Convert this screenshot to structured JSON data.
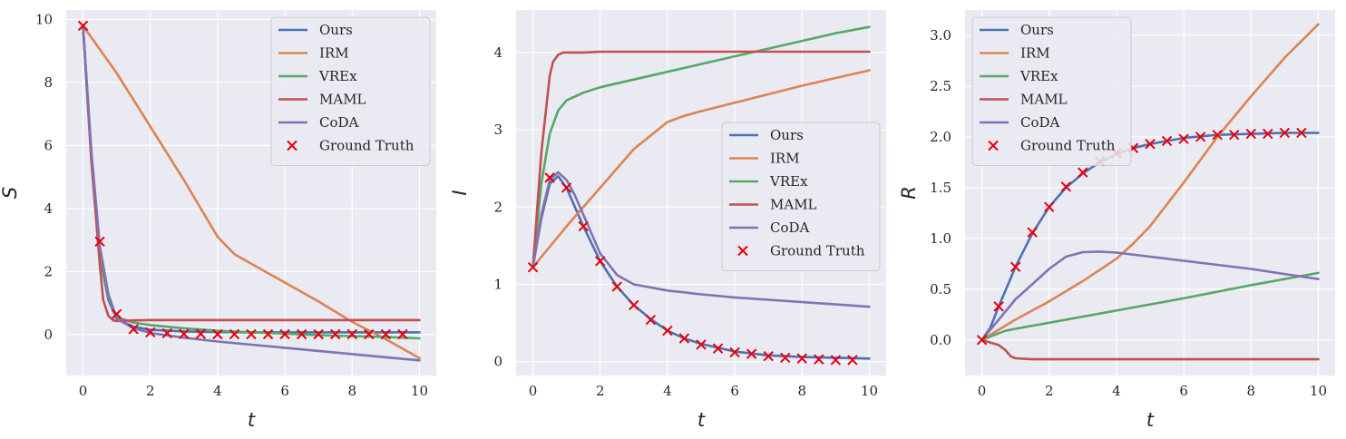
{
  "chart_data": [
    {
      "type": "line",
      "title": "",
      "xlabel": "t",
      "ylabel": "S",
      "xlim": [
        -0.5,
        10.5
      ],
      "ylim": [
        -1.3,
        10.3
      ],
      "xticks": [
        0,
        2,
        4,
        6,
        8,
        10
      ],
      "yticks": [
        0,
        2,
        4,
        6,
        8,
        10
      ],
      "ytick_labels": [
        "0",
        "2",
        "4",
        "6",
        "8",
        "10"
      ],
      "legend_position": "top-right",
      "series": [
        {
          "name": "Ours",
          "color": "#4c72b0",
          "x": [
            0,
            0.25,
            0.5,
            0.75,
            1,
            1.5,
            2,
            3,
            4,
            5,
            6,
            7,
            8,
            9,
            10
          ],
          "y": [
            9.8,
            5.5,
            2.5,
            1.1,
            0.5,
            0.25,
            0.15,
            0.1,
            0.08,
            0.07,
            0.07,
            0.07,
            0.07,
            0.07,
            0.07
          ]
        },
        {
          "name": "IRM",
          "color": "#dd8452",
          "x": [
            0,
            1,
            2,
            3,
            4,
            4.5,
            5,
            6,
            7,
            8,
            9,
            10
          ],
          "y": [
            9.8,
            8.3,
            6.6,
            4.9,
            3.1,
            2.55,
            2.25,
            1.65,
            1.05,
            0.4,
            -0.15,
            -0.75
          ]
        },
        {
          "name": "VREx",
          "color": "#55a868",
          "x": [
            0,
            0.25,
            0.5,
            0.75,
            1,
            1.5,
            2,
            3,
            4,
            5,
            6,
            7,
            8,
            9,
            10
          ],
          "y": [
            9.8,
            5.7,
            2.6,
            1.2,
            0.55,
            0.38,
            0.3,
            0.2,
            0.12,
            0.07,
            0.03,
            -0.02,
            -0.05,
            -0.08,
            -0.12
          ]
        },
        {
          "name": "MAML",
          "color": "#c44e52",
          "x": [
            0,
            0.25,
            0.5,
            0.6,
            0.75,
            0.9,
            1,
            1.5,
            2,
            4,
            6,
            8,
            10
          ],
          "y": [
            9.8,
            5.5,
            2.2,
            1.1,
            0.6,
            0.45,
            0.43,
            0.45,
            0.46,
            0.46,
            0.46,
            0.46,
            0.46
          ]
        },
        {
          "name": "CoDA",
          "color": "#8172b3",
          "x": [
            0,
            0.25,
            0.5,
            0.75,
            1,
            1.5,
            2,
            3,
            4,
            5,
            6,
            7,
            8,
            9,
            10
          ],
          "y": [
            9.8,
            5.8,
            2.8,
            1.3,
            0.5,
            0.2,
            0.05,
            -0.1,
            -0.22,
            -0.32,
            -0.42,
            -0.52,
            -0.62,
            -0.72,
            -0.82
          ]
        },
        {
          "name": "Ground Truth",
          "color": "#e8000b",
          "marker": "x",
          "x": [
            0,
            0.5,
            1,
            1.5,
            2,
            2.5,
            3,
            3.5,
            4,
            4.5,
            5,
            5.5,
            6,
            6.5,
            7,
            7.5,
            8,
            8.5,
            9,
            9.5
          ],
          "y": [
            9.8,
            2.95,
            0.65,
            0.17,
            0.07,
            0.04,
            0.02,
            0.02,
            0.01,
            0.01,
            0.01,
            0.01,
            0.01,
            0.01,
            0.01,
            0.01,
            0.01,
            0.01,
            0.01,
            0.01
          ]
        }
      ]
    },
    {
      "type": "line",
      "title": "",
      "xlabel": "t",
      "ylabel": "I",
      "xlim": [
        -0.5,
        10.5
      ],
      "ylim": [
        -0.18,
        4.55
      ],
      "xticks": [
        0,
        2,
        4,
        6,
        8,
        10
      ],
      "yticks": [
        0,
        1,
        2,
        3,
        4
      ],
      "ytick_labels": [
        "0",
        "1",
        "2",
        "3",
        "4"
      ],
      "legend_position": "center-right",
      "series": [
        {
          "name": "Ours",
          "color": "#4c72b0",
          "x": [
            0,
            0.25,
            0.5,
            0.75,
            1,
            1.25,
            1.5,
            2,
            2.5,
            3,
            3.5,
            4,
            4.5,
            5,
            6,
            7,
            8,
            9,
            10
          ],
          "y": [
            1.22,
            1.85,
            2.3,
            2.4,
            2.25,
            2.0,
            1.75,
            1.3,
            0.97,
            0.73,
            0.55,
            0.4,
            0.3,
            0.23,
            0.13,
            0.08,
            0.06,
            0.05,
            0.04
          ]
        },
        {
          "name": "IRM",
          "color": "#dd8452",
          "x": [
            0,
            1,
            2,
            3,
            4,
            4.5,
            5,
            6,
            7,
            8,
            9,
            10
          ],
          "y": [
            1.22,
            1.75,
            2.25,
            2.75,
            3.1,
            3.18,
            3.24,
            3.35,
            3.46,
            3.57,
            3.67,
            3.77
          ]
        },
        {
          "name": "VREx",
          "color": "#55a868",
          "x": [
            0,
            0.25,
            0.5,
            0.75,
            1,
            1.5,
            2,
            3,
            4,
            5,
            6,
            7,
            8,
            9,
            10
          ],
          "y": [
            1.22,
            2.3,
            2.95,
            3.25,
            3.38,
            3.48,
            3.55,
            3.65,
            3.75,
            3.85,
            3.95,
            4.05,
            4.15,
            4.25,
            4.33
          ]
        },
        {
          "name": "MAML",
          "color": "#c44e52",
          "x": [
            0,
            0.25,
            0.5,
            0.6,
            0.75,
            0.9,
            1,
            1.5,
            2,
            4,
            6,
            8,
            10
          ],
          "y": [
            1.22,
            2.7,
            3.7,
            3.88,
            3.97,
            4.0,
            4.0,
            4.0,
            4.01,
            4.01,
            4.01,
            4.01,
            4.01
          ]
        },
        {
          "name": "CoDA",
          "color": "#8172b3",
          "x": [
            0,
            0.25,
            0.5,
            0.75,
            1,
            1.25,
            1.5,
            2,
            2.5,
            3,
            4,
            5,
            6,
            7,
            8,
            9,
            10
          ],
          "y": [
            1.22,
            1.9,
            2.35,
            2.45,
            2.35,
            2.15,
            1.9,
            1.4,
            1.12,
            1.0,
            0.92,
            0.87,
            0.83,
            0.8,
            0.77,
            0.74,
            0.71
          ]
        },
        {
          "name": "Ground Truth",
          "color": "#e8000b",
          "marker": "x",
          "x": [
            0,
            0.5,
            1,
            1.5,
            2,
            2.5,
            3,
            3.5,
            4,
            4.5,
            5,
            5.5,
            6,
            6.5,
            7,
            7.5,
            8,
            8.5,
            9,
            9.5
          ],
          "y": [
            1.22,
            2.38,
            2.25,
            1.75,
            1.3,
            0.97,
            0.73,
            0.54,
            0.4,
            0.3,
            0.22,
            0.17,
            0.12,
            0.1,
            0.07,
            0.05,
            0.04,
            0.03,
            0.02,
            0.02
          ]
        }
      ]
    },
    {
      "type": "line",
      "title": "",
      "xlabel": "t",
      "ylabel": "R",
      "xlim": [
        -0.5,
        10.5
      ],
      "ylim": [
        -0.35,
        3.25
      ],
      "xticks": [
        0,
        2,
        4,
        6,
        8,
        10
      ],
      "yticks": [
        0.0,
        0.5,
        1.0,
        1.5,
        2.0,
        2.5,
        3.0
      ],
      "ytick_labels": [
        "0.0",
        "0.5",
        "1.0",
        "1.5",
        "2.0",
        "2.5",
        "3.0"
      ],
      "legend_position": "top-left",
      "series": [
        {
          "name": "Ours",
          "color": "#4c72b0",
          "x": [
            0,
            0.25,
            0.5,
            1,
            1.5,
            2,
            2.5,
            3,
            3.5,
            4,
            4.5,
            5,
            6,
            7,
            8,
            9,
            10
          ],
          "y": [
            0,
            0.12,
            0.33,
            0.72,
            1.05,
            1.31,
            1.5,
            1.64,
            1.75,
            1.83,
            1.89,
            1.93,
            1.99,
            2.02,
            2.03,
            2.04,
            2.04
          ]
        },
        {
          "name": "IRM",
          "color": "#dd8452",
          "x": [
            0,
            1,
            2,
            3,
            4,
            4.5,
            5,
            6,
            7,
            8,
            9,
            10
          ],
          "y": [
            0,
            0.2,
            0.38,
            0.58,
            0.8,
            0.95,
            1.12,
            1.55,
            2.0,
            2.4,
            2.78,
            3.11
          ]
        },
        {
          "name": "VREx",
          "color": "#55a868",
          "x": [
            0,
            0.3,
            0.7,
            1,
            2,
            4,
            6,
            8,
            10
          ],
          "y": [
            0,
            0.04,
            0.09,
            0.11,
            0.17,
            0.29,
            0.41,
            0.54,
            0.66
          ]
        },
        {
          "name": "MAML",
          "color": "#c44e52",
          "x": [
            0,
            0.3,
            0.5,
            0.7,
            0.85,
            1,
            1.5,
            2,
            4,
            6,
            8,
            10
          ],
          "y": [
            0,
            -0.03,
            -0.05,
            -0.1,
            -0.16,
            -0.18,
            -0.19,
            -0.19,
            -0.19,
            -0.19,
            -0.19,
            -0.19
          ]
        },
        {
          "name": "CoDA",
          "color": "#8172b3",
          "x": [
            0,
            0.5,
            1,
            1.5,
            2,
            2.5,
            3,
            3.5,
            4,
            5,
            6,
            7,
            8,
            9,
            10
          ],
          "y": [
            0,
            0.2,
            0.4,
            0.55,
            0.7,
            0.82,
            0.865,
            0.87,
            0.86,
            0.82,
            0.78,
            0.74,
            0.7,
            0.65,
            0.6
          ]
        },
        {
          "name": "Ground Truth",
          "color": "#e8000b",
          "marker": "x",
          "x": [
            0,
            0.5,
            1,
            1.5,
            2,
            2.5,
            3,
            3.5,
            4,
            4.5,
            5,
            5.5,
            6,
            6.5,
            7,
            7.5,
            8,
            8.5,
            9,
            9.5
          ],
          "y": [
            0,
            0.33,
            0.72,
            1.06,
            1.31,
            1.51,
            1.65,
            1.76,
            1.84,
            1.89,
            1.93,
            1.96,
            1.98,
            2.0,
            2.02,
            2.02,
            2.03,
            2.03,
            2.04,
            2.04
          ]
        }
      ]
    }
  ]
}
